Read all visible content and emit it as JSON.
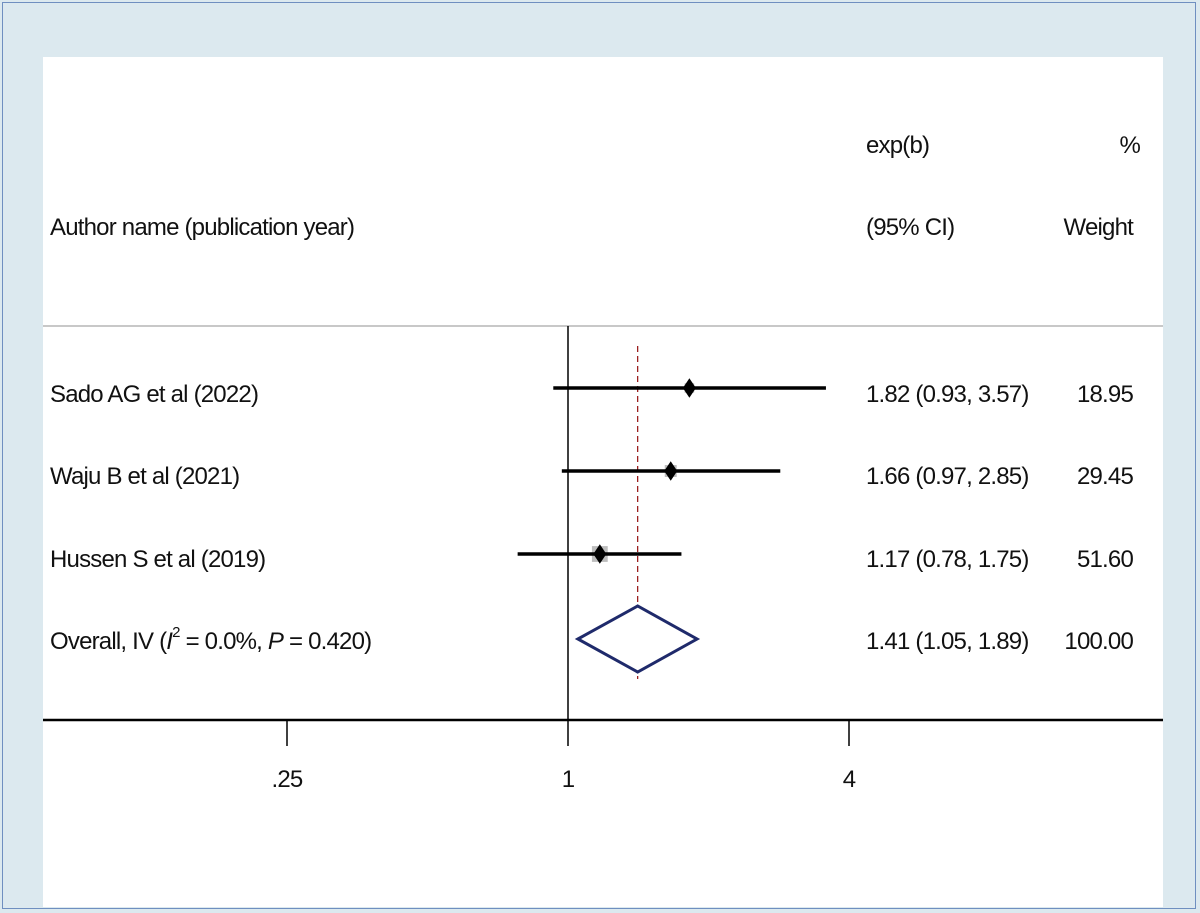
{
  "chart_data": {
    "type": "forest",
    "header": {
      "study_col": "Author name (publication year)",
      "effect_col_line1": "exp(b)",
      "effect_col_line2": "(95% CI)",
      "weight_col_line1": "%",
      "weight_col_line2": "Weight"
    },
    "studies": [
      {
        "label": "Sado AG et al (2022)",
        "estimate": 1.82,
        "lower": 0.93,
        "upper": 3.57,
        "effect_text": "1.82 (0.93, 3.57)",
        "weight": 18.95,
        "weight_text": "18.95"
      },
      {
        "label": "Waju B et al (2021)",
        "estimate": 1.66,
        "lower": 0.97,
        "upper": 2.85,
        "effect_text": "1.66 (0.97, 2.85)",
        "weight": 29.45,
        "weight_text": "29.45"
      },
      {
        "label": "Hussen S et al (2019)",
        "estimate": 1.17,
        "lower": 0.78,
        "upper": 1.75,
        "effect_text": "1.17 (0.78, 1.75)",
        "weight": 51.6,
        "weight_text": "51.60"
      }
    ],
    "overall": {
      "label_prefix": "Overall, IV (",
      "i_symbol": "I",
      "sup": "2",
      "label_mid": " = 0.0%, ",
      "p_symbol": "P",
      "label_suffix": " = 0.420)",
      "estimate": 1.41,
      "lower": 1.05,
      "upper": 1.89,
      "effect_text": "1.41 (1.05, 1.89)",
      "weight_text": "100.00"
    },
    "x_axis": {
      "scale": "log",
      "ticks": [
        0.25,
        1,
        4
      ],
      "tick_labels": [
        ".25",
        "1",
        "4"
      ],
      "null_value": 1
    },
    "colors": {
      "ci_line": "#000000",
      "weight_box": "#bdbdbd",
      "diamond": "#1f2a6b",
      "overall_line": "#9b2020",
      "separator": "#c8c8c8"
    }
  }
}
